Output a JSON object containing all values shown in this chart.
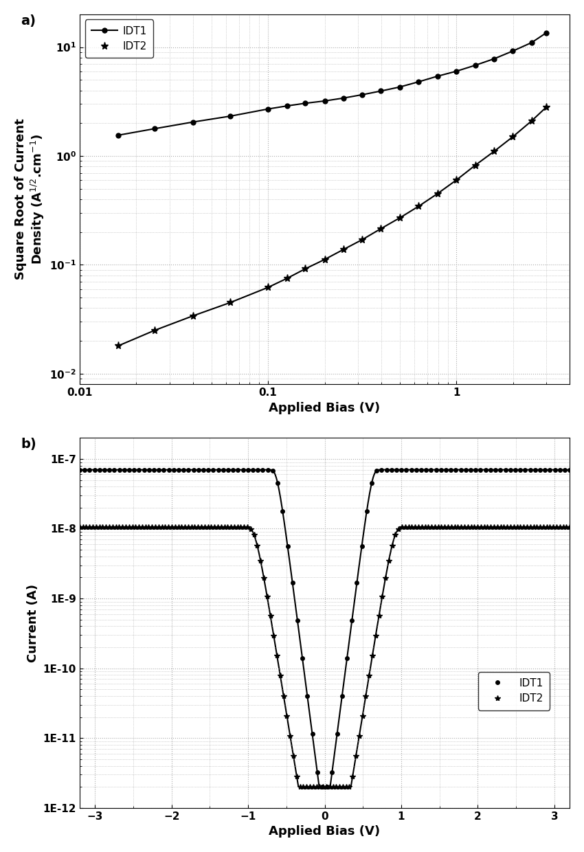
{
  "panel_a": {
    "IDT1_x": [
      0.016,
      0.025,
      0.04,
      0.063,
      0.1,
      0.126,
      0.158,
      0.2,
      0.251,
      0.316,
      0.398,
      0.501,
      0.631,
      0.794,
      1.0,
      1.259,
      1.585,
      1.995,
      2.512,
      3.0
    ],
    "IDT1_y": [
      1.55,
      1.78,
      2.05,
      2.32,
      2.7,
      2.88,
      3.05,
      3.2,
      3.4,
      3.65,
      3.95,
      4.3,
      4.8,
      5.4,
      6.0,
      6.8,
      7.8,
      9.2,
      11.0,
      13.5
    ],
    "IDT2_x": [
      0.016,
      0.025,
      0.04,
      0.063,
      0.1,
      0.126,
      0.158,
      0.2,
      0.251,
      0.316,
      0.398,
      0.501,
      0.631,
      0.794,
      1.0,
      1.259,
      1.585,
      1.995,
      2.512,
      3.0
    ],
    "IDT2_y": [
      0.018,
      0.025,
      0.034,
      0.045,
      0.062,
      0.075,
      0.092,
      0.112,
      0.138,
      0.17,
      0.215,
      0.27,
      0.345,
      0.45,
      0.6,
      0.82,
      1.1,
      1.5,
      2.1,
      2.8
    ],
    "xlabel": "Applied Bias (V)",
    "xlim": [
      0.01,
      4.0
    ],
    "ylim": [
      0.008,
      20
    ],
    "label_a": "a)",
    "legend_IDT1": "IDT1",
    "legend_IDT2": "IDT2"
  },
  "panel_b": {
    "IDT1_I0": 2e-10,
    "IDT1_n": 1.4,
    "IDT2_I0": 5e-12,
    "IDT2_n": 1.9,
    "xlabel": "Applied Bias (V)",
    "ylabel": "Current (A)",
    "xlim": [
      -3.2,
      3.2
    ],
    "ylim": [
      1e-12,
      2e-07
    ],
    "xticks": [
      -3,
      -2,
      -1,
      0,
      1,
      2,
      3
    ],
    "label_b": "b)",
    "legend_IDT1": "IDT1",
    "legend_IDT2": "IDT2"
  },
  "color": "#000000",
  "background": "#ffffff",
  "grid_color": "#aaaaaa",
  "fontsize_label": 13,
  "fontsize_tick": 11,
  "fontsize_legend": 11,
  "fontsize_panel_label": 14
}
